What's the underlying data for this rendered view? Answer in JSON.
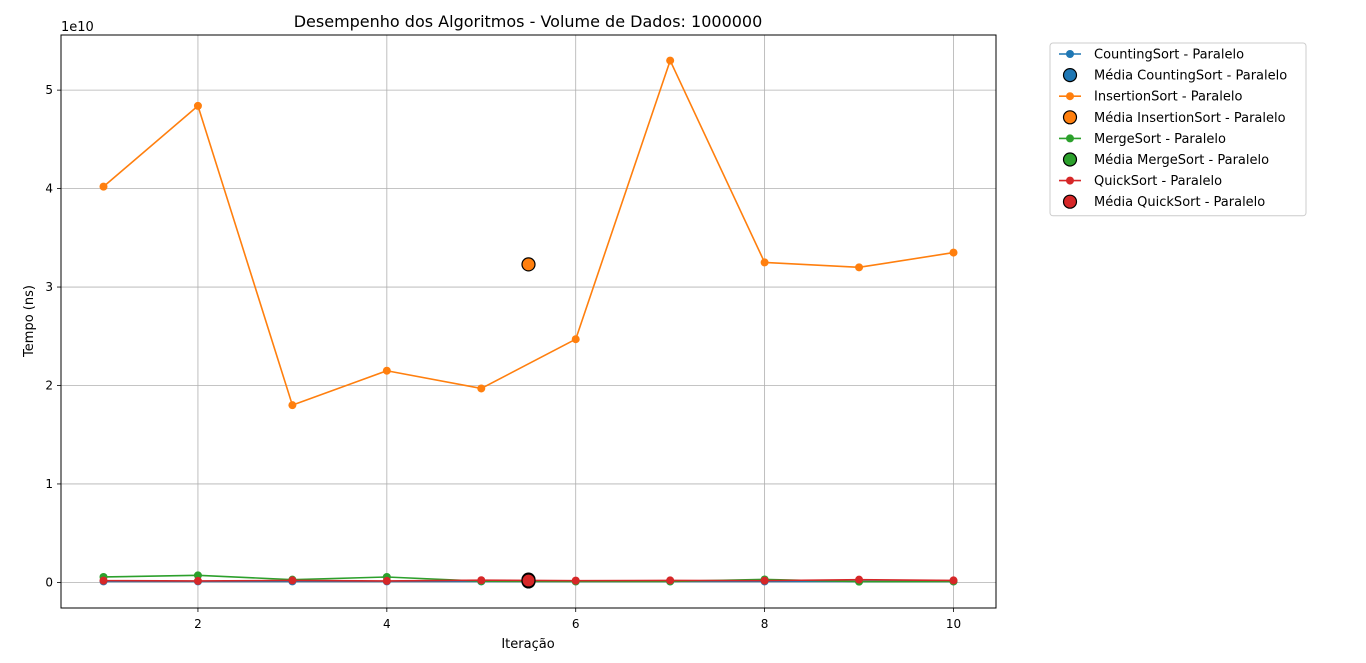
{
  "chart_data": {
    "type": "line",
    "title": "Desempenho dos Algoritmos - Volume de Dados: 1000000",
    "xlabel": "Iteração",
    "ylabel": "Tempo (ns)",
    "y_offset_label": "1e10",
    "x": [
      1,
      2,
      3,
      4,
      5,
      6,
      7,
      8,
      9,
      10
    ],
    "xlim": [
      0.55,
      10.45
    ],
    "ylim": [
      -2600000000.0,
      55600000000.0
    ],
    "x_ticks": [
      2,
      4,
      6,
      8,
      10
    ],
    "x_tick_labels": [
      "2",
      "4",
      "6",
      "8",
      "10"
    ],
    "y_ticks": [
      0,
      10000000000.0,
      20000000000.0,
      30000000000.0,
      40000000000.0,
      50000000000.0
    ],
    "y_tick_labels": [
      "0",
      "1",
      "2",
      "3",
      "4",
      "5"
    ],
    "grid": true,
    "legend_position": "outside-top-right",
    "series": [
      {
        "name": "CountingSort - Paralelo",
        "mean_label": "Média CountingSort - Paralelo",
        "color": "#1f77b4",
        "values": [
          100000000.0,
          100000000.0,
          100000000.0,
          100000000.0,
          100000000.0,
          100000000.0,
          100000000.0,
          100000000.0,
          100000000.0,
          100000000.0
        ],
        "mean": 100000000.0,
        "mean_x": 5.5
      },
      {
        "name": "InsertionSort - Paralelo",
        "mean_label": "Média InsertionSort - Paralelo",
        "color": "#ff7f0e",
        "values": [
          40200000000.0,
          48400000000.0,
          18000000000.0,
          21500000000.0,
          19700000000.0,
          24700000000.0,
          53000000000.0,
          32500000000.0,
          32000000000.0,
          33500000000.0
        ],
        "mean": 32300000000.0,
        "mean_x": 5.5
      },
      {
        "name": "MergeSort - Paralelo",
        "mean_label": "Média MergeSort - Paralelo",
        "color": "#2ca02c",
        "values": [
          550000000.0,
          720000000.0,
          280000000.0,
          550000000.0,
          120000000.0,
          100000000.0,
          100000000.0,
          300000000.0,
          80000000.0,
          100000000.0
        ],
        "mean": 280000000.0,
        "mean_x": 5.5
      },
      {
        "name": "QuickSort - Paralelo",
        "mean_label": "Média QuickSort - Paralelo",
        "color": "#d62728",
        "values": [
          180000000.0,
          150000000.0,
          200000000.0,
          150000000.0,
          220000000.0,
          180000000.0,
          200000000.0,
          180000000.0,
          280000000.0,
          200000000.0
        ],
        "mean": 190000000.0,
        "mean_x": 5.5
      }
    ]
  }
}
